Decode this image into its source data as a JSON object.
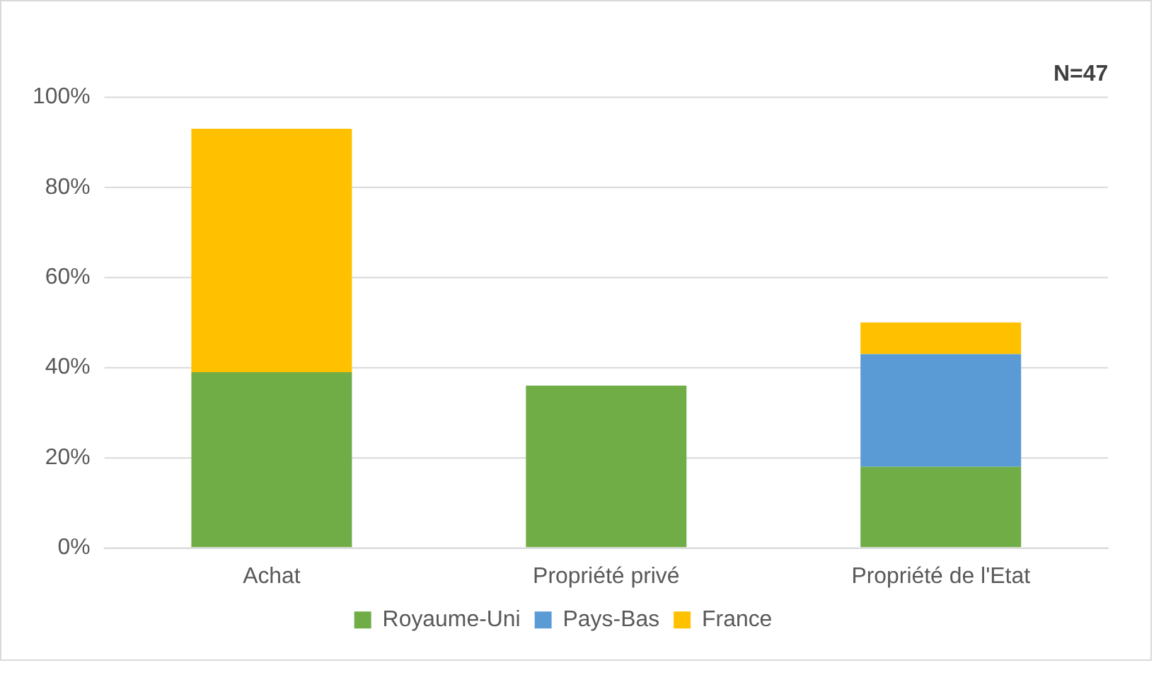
{
  "chart_data": {
    "type": "bar",
    "stacked": true,
    "categories": [
      "Achat",
      "Propriété privé",
      "Propriété de l'Etat"
    ],
    "series": [
      {
        "name": "Royaume-Uni",
        "color": "#70ad47",
        "values": [
          39,
          36,
          18
        ]
      },
      {
        "name": "Pays-Bas",
        "color": "#5b9bd5",
        "values": [
          0,
          0,
          25
        ]
      },
      {
        "name": "France",
        "color": "#ffc000",
        "values": [
          54,
          0,
          7
        ]
      }
    ],
    "ylim": [
      0,
      100
    ],
    "yticks": [
      {
        "value": 0,
        "label": "0%"
      },
      {
        "value": 20,
        "label": "20%"
      },
      {
        "value": 40,
        "label": "40%"
      },
      {
        "value": 60,
        "label": "60%"
      },
      {
        "value": 80,
        "label": "80%"
      },
      {
        "value": 100,
        "label": "100%"
      }
    ],
    "grid": "y",
    "legend": "bottom",
    "annotations": [
      "N=47"
    ]
  }
}
